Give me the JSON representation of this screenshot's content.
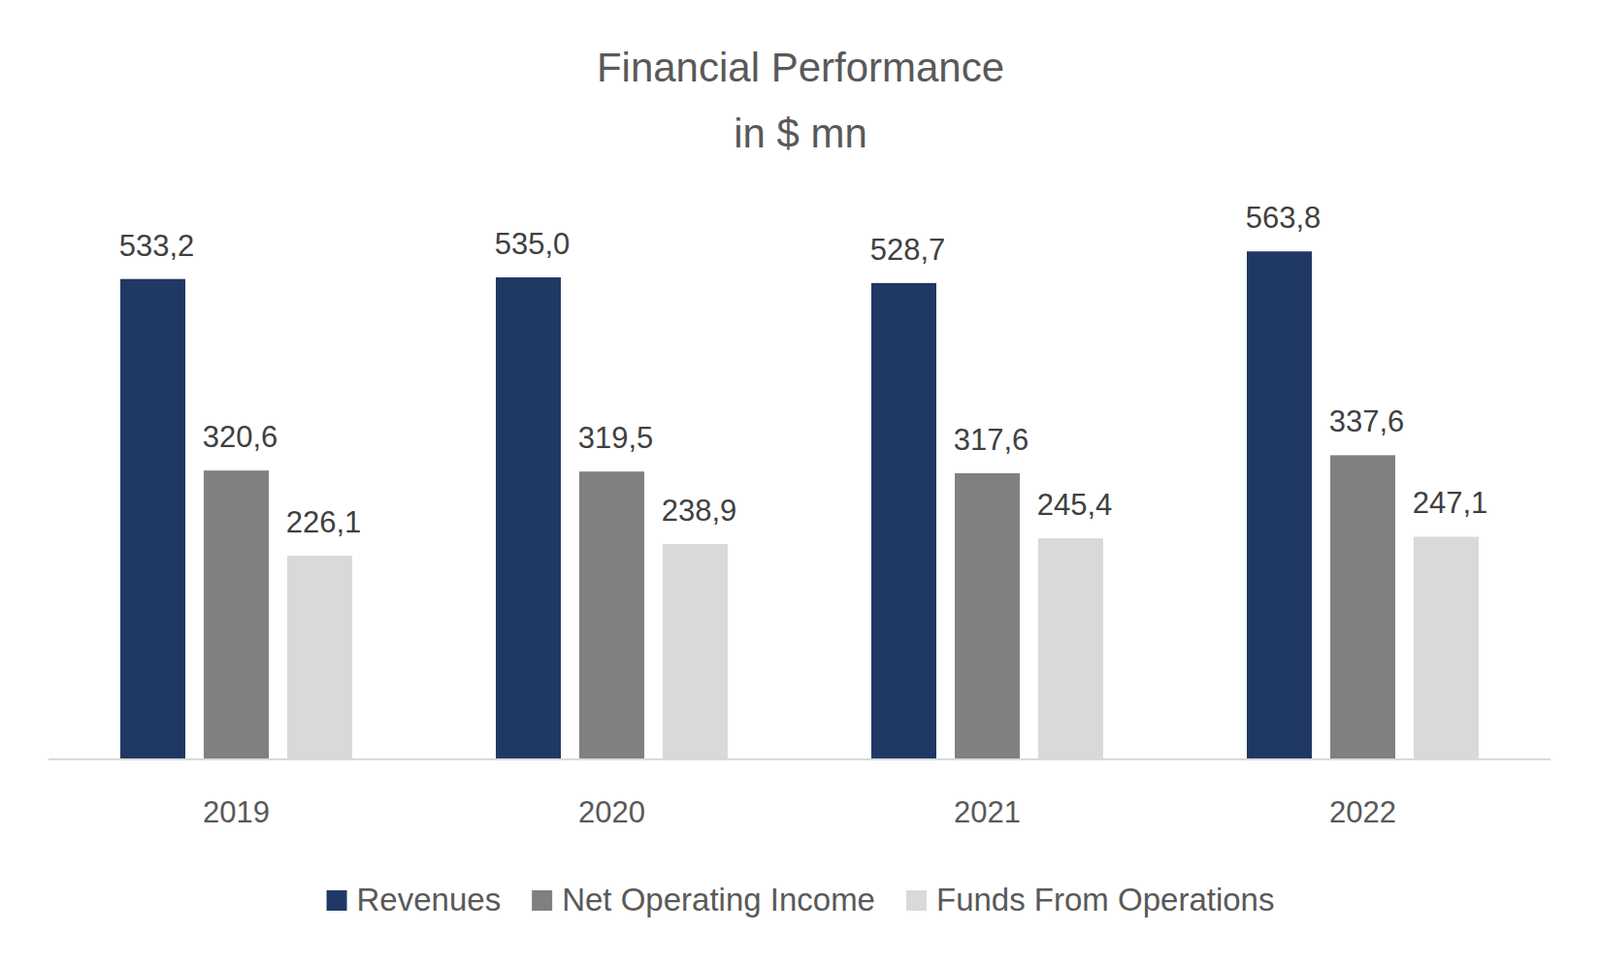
{
  "chart_data": {
    "type": "bar",
    "title": "Financial Performance",
    "subtitle": "in $ mn",
    "categories": [
      "2019",
      "2020",
      "2021",
      "2022"
    ],
    "series": [
      {
        "name": "Revenues",
        "color": "#203864",
        "values": [
          533.2,
          535.0,
          528.7,
          563.8
        ],
        "value_labels": [
          "533,2",
          "535,0",
          "528,7",
          "563,8"
        ]
      },
      {
        "name": "Net Operating Income",
        "color": "#808080",
        "values": [
          320.6,
          319.5,
          317.6,
          337.6
        ],
        "value_labels": [
          "320,6",
          "319,5",
          "317,6",
          "337,6"
        ]
      },
      {
        "name": "Funds From Operations",
        "color": "#d9d9d9",
        "values": [
          226.1,
          238.9,
          245.4,
          247.1
        ],
        "value_labels": [
          "226,1",
          "238,9",
          "245,4",
          "247,1"
        ]
      }
    ],
    "ylim": [
      0,
      600
    ],
    "data_labels": true,
    "tick_labels": "x",
    "legend": "bottom"
  }
}
